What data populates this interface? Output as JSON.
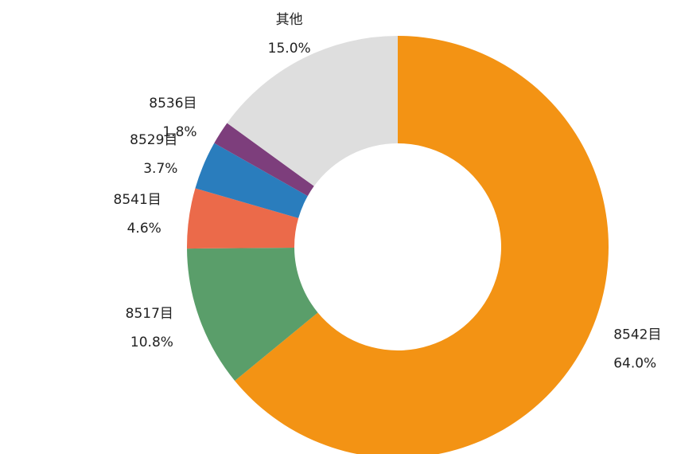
{
  "chart_data": {
    "type": "pie",
    "donut": true,
    "categories": [
      "8542目",
      "8517目",
      "8541目",
      "8529目",
      "8536目",
      "其他"
    ],
    "values": [
      64.0,
      10.8,
      4.6,
      3.7,
      1.8,
      15.0
    ],
    "value_labels": [
      "64.0%",
      "10.8%",
      "4.6%",
      "3.7%",
      "1.8%",
      "15.0%"
    ],
    "colors": [
      "#f39314",
      "#5a9e6a",
      "#eb6a4a",
      "#2a7dbd",
      "#7d3e7c",
      "#dedede"
    ]
  }
}
